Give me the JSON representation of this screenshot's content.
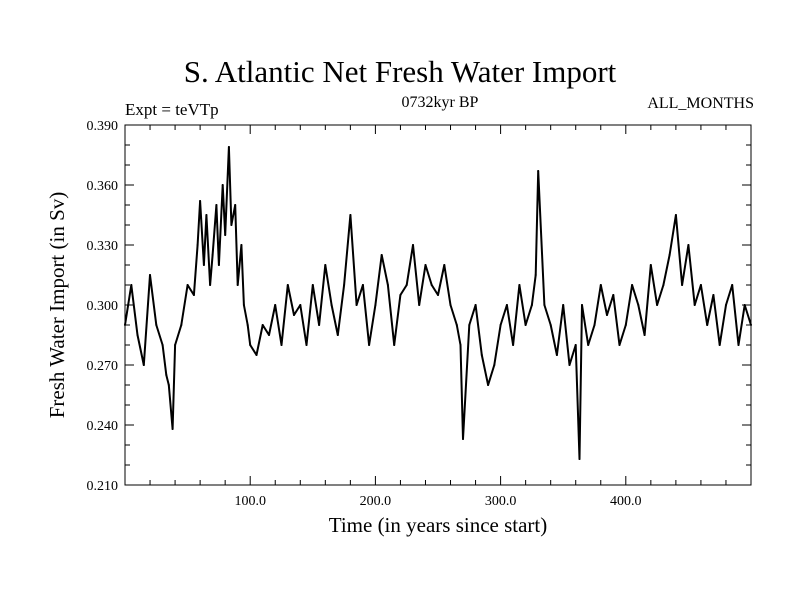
{
  "chart_data": {
    "type": "line",
    "title": "S. Atlantic Net Fresh Water Import",
    "subtitle_left": "Expt = teVTp",
    "subtitle_center": "0732kyr BP",
    "subtitle_right": "ALL_MONTHS",
    "xlabel": "Time (in years since start)",
    "ylabel": "Fresh Water Import (in Sv)",
    "xlim": [
      0,
      500
    ],
    "ylim": [
      0.21,
      0.39
    ],
    "xticks": [
      100,
      200,
      300,
      400
    ],
    "xtick_labels": [
      "100.0",
      "200.0",
      "300.0",
      "400.0"
    ],
    "yticks": [
      0.21,
      0.24,
      0.27,
      0.3,
      0.33,
      0.36,
      0.39
    ],
    "ytick_labels": [
      "0.210",
      "0.240",
      "0.270",
      "0.300",
      "0.330",
      "0.360",
      "0.390"
    ],
    "grid": false,
    "series": [
      {
        "name": "fresh_water_import",
        "x": [
          0,
          5,
          10,
          15,
          20,
          25,
          30,
          33,
          35,
          38,
          40,
          45,
          50,
          55,
          58,
          60,
          63,
          65,
          68,
          70,
          73,
          75,
          78,
          80,
          83,
          85,
          88,
          90,
          93,
          95,
          98,
          100,
          105,
          110,
          115,
          120,
          125,
          130,
          135,
          140,
          145,
          150,
          155,
          160,
          165,
          170,
          175,
          180,
          185,
          190,
          195,
          200,
          205,
          210,
          215,
          220,
          225,
          230,
          235,
          240,
          245,
          250,
          255,
          260,
          265,
          268,
          270,
          275,
          280,
          285,
          290,
          295,
          300,
          305,
          310,
          315,
          320,
          325,
          328,
          330,
          335,
          340,
          345,
          350,
          355,
          360,
          363,
          365,
          370,
          375,
          380,
          385,
          390,
          395,
          400,
          405,
          410,
          415,
          420,
          425,
          430,
          435,
          440,
          445,
          450,
          455,
          460,
          465,
          470,
          475,
          480,
          485,
          490,
          495,
          500
        ],
        "values": [
          0.29,
          0.31,
          0.285,
          0.27,
          0.315,
          0.29,
          0.28,
          0.265,
          0.26,
          0.238,
          0.28,
          0.29,
          0.31,
          0.305,
          0.33,
          0.352,
          0.32,
          0.345,
          0.31,
          0.325,
          0.35,
          0.32,
          0.36,
          0.335,
          0.379,
          0.34,
          0.35,
          0.31,
          0.33,
          0.3,
          0.29,
          0.28,
          0.275,
          0.29,
          0.285,
          0.3,
          0.28,
          0.31,
          0.295,
          0.3,
          0.28,
          0.31,
          0.29,
          0.32,
          0.3,
          0.285,
          0.31,
          0.345,
          0.3,
          0.31,
          0.28,
          0.3,
          0.325,
          0.31,
          0.28,
          0.305,
          0.31,
          0.33,
          0.3,
          0.32,
          0.31,
          0.305,
          0.32,
          0.3,
          0.29,
          0.28,
          0.233,
          0.29,
          0.3,
          0.275,
          0.26,
          0.27,
          0.29,
          0.3,
          0.28,
          0.31,
          0.29,
          0.3,
          0.315,
          0.367,
          0.3,
          0.29,
          0.275,
          0.3,
          0.27,
          0.28,
          0.223,
          0.3,
          0.28,
          0.29,
          0.31,
          0.295,
          0.305,
          0.28,
          0.29,
          0.31,
          0.3,
          0.285,
          0.32,
          0.3,
          0.31,
          0.325,
          0.345,
          0.31,
          0.33,
          0.3,
          0.31,
          0.29,
          0.305,
          0.28,
          0.3,
          0.31,
          0.28,
          0.3,
          0.29
        ]
      }
    ]
  }
}
